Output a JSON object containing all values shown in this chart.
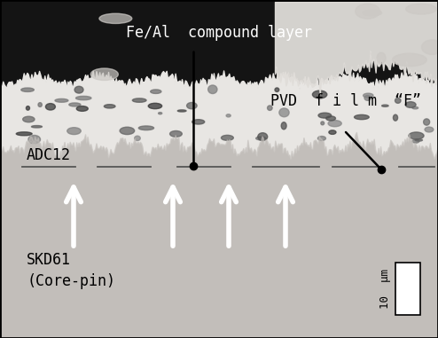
{
  "figsize": [
    4.94,
    3.81
  ],
  "dpi": 100,
  "labels": {
    "fe_al": "Fe/Al  compound layer",
    "adc12": "ADC12",
    "pvd_film": "PVD  f i l m  “F”",
    "skd61": "SKD61\n(Core-pin)",
    "scale_label": "10  μm"
  },
  "skd61_gray": "#c2beba",
  "compound_white": "#e8e6e3",
  "top_black": "#141414",
  "top_white_patch": "#dddbd8",
  "pvd_line_color": "#555555",
  "font_size": 12,
  "font_size_scale": 9,
  "arrow_color": "white",
  "dot_color": "black",
  "line_color": "black",
  "border_color": "black",
  "scale_bar_color": "white"
}
